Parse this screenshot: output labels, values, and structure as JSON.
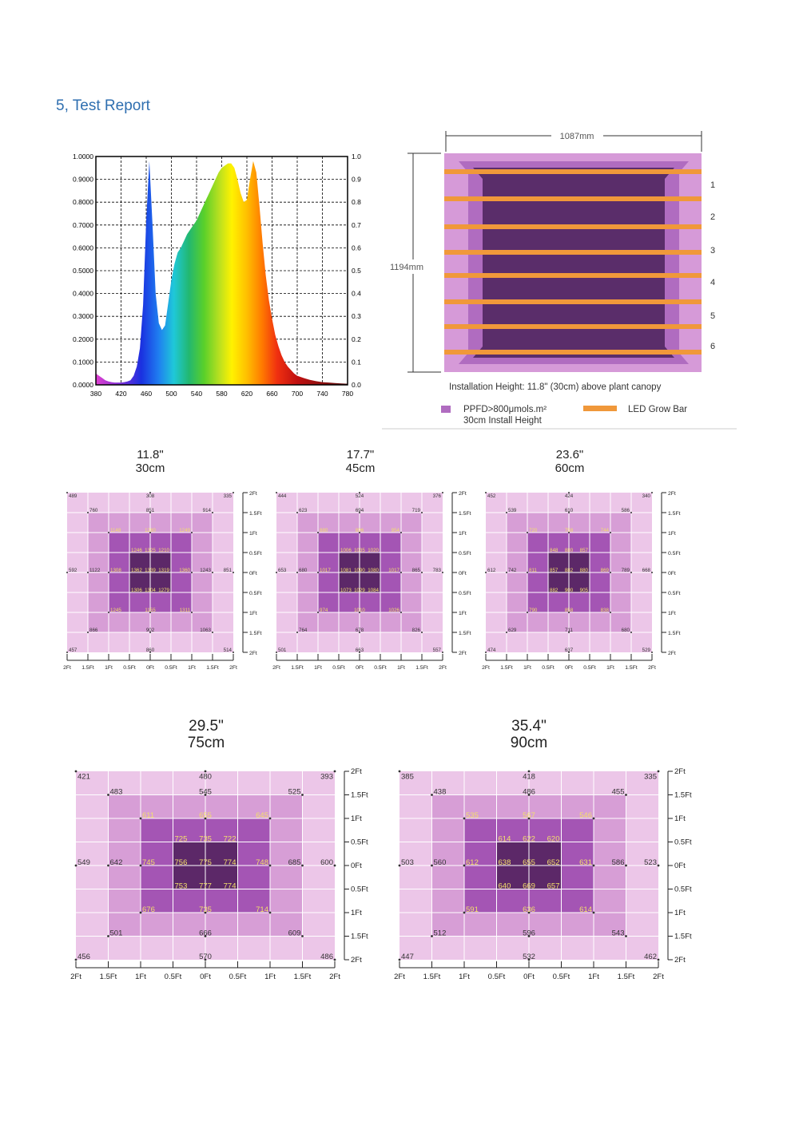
{
  "page": {
    "title": "5, Test Report"
  },
  "chart_data": [
    {
      "type": "area",
      "xlim": [
        380,
        780
      ],
      "ylim": [
        0,
        1
      ],
      "x_ticks": [
        "380",
        "420",
        "460",
        "500",
        "540",
        "580",
        "620",
        "660",
        "700",
        "740",
        "780"
      ],
      "y_left_ticks": [
        "0.0000",
        "0.1000",
        "0.2000",
        "0.3000",
        "0.4000",
        "0.5000",
        "0.6000",
        "0.7000",
        "0.8000",
        "0.9000",
        "1.0000"
      ],
      "y_right_ticks": [
        "0.0",
        "0.1",
        "0.2",
        "0.3",
        "0.4",
        "0.5",
        "0.6",
        "0.7",
        "0.8",
        "0.9",
        "1.0"
      ],
      "x": [
        380,
        385,
        390,
        395,
        400,
        405,
        410,
        415,
        420,
        425,
        430,
        435,
        440,
        445,
        450,
        455,
        460,
        465,
        470,
        475,
        480,
        485,
        490,
        495,
        500,
        505,
        510,
        515,
        520,
        525,
        530,
        535,
        540,
        545,
        550,
        555,
        560,
        565,
        570,
        575,
        580,
        585,
        590,
        595,
        600,
        605,
        610,
        615,
        620,
        625,
        630,
        635,
        640,
        645,
        650,
        655,
        660,
        665,
        670,
        675,
        680,
        685,
        690,
        695,
        700,
        710,
        720,
        730,
        740,
        750,
        760,
        770,
        780
      ],
      "y": [
        0.05,
        0.04,
        0.03,
        0.02,
        0.015,
        0.012,
        0.01,
        0.01,
        0.01,
        0.012,
        0.015,
        0.02,
        0.04,
        0.08,
        0.16,
        0.35,
        0.72,
        0.98,
        0.7,
        0.4,
        0.27,
        0.24,
        0.26,
        0.36,
        0.46,
        0.53,
        0.58,
        0.6,
        0.63,
        0.66,
        0.68,
        0.7,
        0.72,
        0.75,
        0.78,
        0.81,
        0.84,
        0.87,
        0.9,
        0.93,
        0.95,
        0.96,
        0.97,
        0.97,
        0.95,
        0.9,
        0.84,
        0.8,
        0.81,
        0.9,
        0.98,
        0.93,
        0.78,
        0.62,
        0.48,
        0.37,
        0.29,
        0.22,
        0.17,
        0.13,
        0.1,
        0.08,
        0.065,
        0.05,
        0.04,
        0.03,
        0.022,
        0.016,
        0.012,
        0.01,
        0.008,
        0.006,
        0.005
      ]
    }
  ],
  "layout_diagram": {
    "width_label": "1087mm",
    "height_label": "1194mm",
    "bar_numbers": [
      "1",
      "2",
      "3",
      "4",
      "5",
      "6"
    ],
    "install_note": "Installation Height: 11.8\" (30cm) above plant canopy",
    "legend_ppfd_line1": "PPFD>800μmols.m²",
    "legend_ppfd_line2": "30cm Install Height",
    "legend_bar": "LED Grow Bar",
    "colors": {
      "ppfd": "#b06cc0",
      "bar": "#f0983a",
      "dark": "#5a2d6a",
      "light": "#d69ad8"
    }
  },
  "ppfd_maps": {
    "axis_ticks": [
      "2Ft",
      "1.5Ft",
      "1Ft",
      "0.5Ft",
      "0Ft",
      "0.5Ft",
      "1Ft",
      "1.5Ft",
      "2Ft"
    ],
    "maps": [
      {
        "title1": "11.8\"",
        "title2": "30cm",
        "outer": [
          "489",
          "308",
          "335",
          "592",
          "851",
          "457",
          "860",
          "514"
        ],
        "second": [
          "760",
          "851",
          "914",
          "1122",
          "1243",
          "866",
          "902",
          "1063"
        ],
        "third": [
          "1148",
          "1280",
          "1249",
          "1308",
          "1360",
          "1245",
          "1155",
          "1311"
        ],
        "inner": [
          "1246",
          "1325",
          "1210",
          "1362",
          "1339",
          "1319",
          "1306",
          "1304",
          "1279"
        ]
      },
      {
        "title1": "17.7\"",
        "title2": "45cm",
        "outer": [
          "444",
          "524",
          "376",
          "653",
          "783",
          "501",
          "663",
          "557"
        ],
        "second": [
          "623",
          "694",
          "719",
          "680",
          "865",
          "764",
          "678",
          "826"
        ],
        "third": [
          "880",
          "896",
          "954",
          "1017",
          "1017",
          "974",
          "1010",
          "1026"
        ],
        "inner": [
          "1006",
          "1035",
          "1020",
          "1081",
          "1090",
          "1080",
          "1073",
          "1029",
          "1084"
        ]
      },
      {
        "title1": "23.6\"",
        "title2": "60cm",
        "outer": [
          "452",
          "424",
          "340",
          "612",
          "668",
          "474",
          "637",
          "529"
        ],
        "second": [
          "539",
          "610",
          "586",
          "742",
          "789",
          "629",
          "711",
          "680"
        ],
        "third": [
          "720",
          "758",
          "744",
          "811",
          "869",
          "790",
          "858",
          "838"
        ],
        "inner": [
          "848",
          "880",
          "857",
          "857",
          "882",
          "880",
          "882",
          "900",
          "905"
        ]
      },
      {
        "title1": "29.5\"",
        "title2": "75cm",
        "outer": [
          "421",
          "480",
          "393",
          "549",
          "600",
          "456",
          "570",
          "486"
        ],
        "second": [
          "483",
          "545",
          "525",
          "642",
          "685",
          "501",
          "666",
          "609"
        ],
        "third": [
          "611",
          "655",
          "645",
          "745",
          "748",
          "676",
          "735",
          "714"
        ],
        "inner": [
          "725",
          "735",
          "722",
          "756",
          "775",
          "774",
          "753",
          "777",
          "774"
        ]
      },
      {
        "title1": "35.4\"",
        "title2": "90cm",
        "outer": [
          "385",
          "418",
          "335",
          "503",
          "523",
          "447",
          "532",
          "462"
        ],
        "second": [
          "438",
          "486",
          "455",
          "560",
          "586",
          "512",
          "596",
          "543"
        ],
        "third": [
          "535",
          "567",
          "546",
          "612",
          "631",
          "591",
          "636",
          "614"
        ],
        "inner": [
          "614",
          "622",
          "620",
          "638",
          "655",
          "652",
          "640",
          "669",
          "657"
        ]
      }
    ]
  }
}
